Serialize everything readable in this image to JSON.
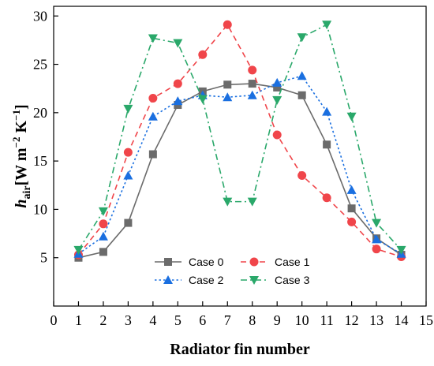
{
  "chart_data": {
    "type": "line",
    "xlabel": "Radiator fin number",
    "ylabel_main": "h",
    "ylabel_sub": "air",
    "ylabel_units": "[W m",
    "ylabel_exp1": "−2",
    "ylabel_mid": " K",
    "ylabel_exp2": "−1",
    "ylabel_close": "]",
    "xlim": [
      0,
      15
    ],
    "ylim": [
      0,
      31
    ],
    "x_ticks": [
      0,
      1,
      2,
      3,
      4,
      5,
      6,
      7,
      8,
      9,
      10,
      11,
      12,
      13,
      14,
      15
    ],
    "y_ticks": [
      5,
      10,
      15,
      20,
      25,
      30
    ],
    "grid": false,
    "legend_position": "bottom-center",
    "x": [
      1,
      2,
      3,
      4,
      5,
      6,
      7,
      8,
      9,
      10,
      11,
      12,
      13,
      14
    ],
    "series": [
      {
        "name": "Case 0",
        "color": "#6b6b6b",
        "marker": "square",
        "dash": "solid",
        "values": [
          5.0,
          5.6,
          8.6,
          15.7,
          20.8,
          22.2,
          22.9,
          23.0,
          22.6,
          21.8,
          16.7,
          10.1,
          7.0,
          5.3
        ]
      },
      {
        "name": "Case 1",
        "color": "#f0454a",
        "marker": "circle",
        "dash": "dash",
        "values": [
          5.3,
          8.5,
          15.9,
          21.5,
          23.0,
          26.0,
          29.1,
          24.4,
          17.7,
          13.5,
          11.2,
          8.7,
          5.9,
          5.1
        ]
      },
      {
        "name": "Case 2",
        "color": "#1a6fe0",
        "marker": "triangle-up",
        "dash": "dot",
        "values": [
          5.4,
          7.2,
          13.5,
          19.6,
          21.2,
          21.8,
          21.6,
          21.8,
          23.1,
          23.8,
          20.1,
          12.0,
          6.9,
          5.4
        ]
      },
      {
        "name": "Case 3",
        "color": "#2aa86a",
        "marker": "triangle-down",
        "dash": "dashdot",
        "values": [
          5.8,
          9.8,
          20.4,
          27.7,
          27.2,
          21.4,
          10.8,
          10.8,
          21.3,
          27.8,
          29.1,
          19.6,
          8.6,
          5.8
        ]
      }
    ]
  }
}
